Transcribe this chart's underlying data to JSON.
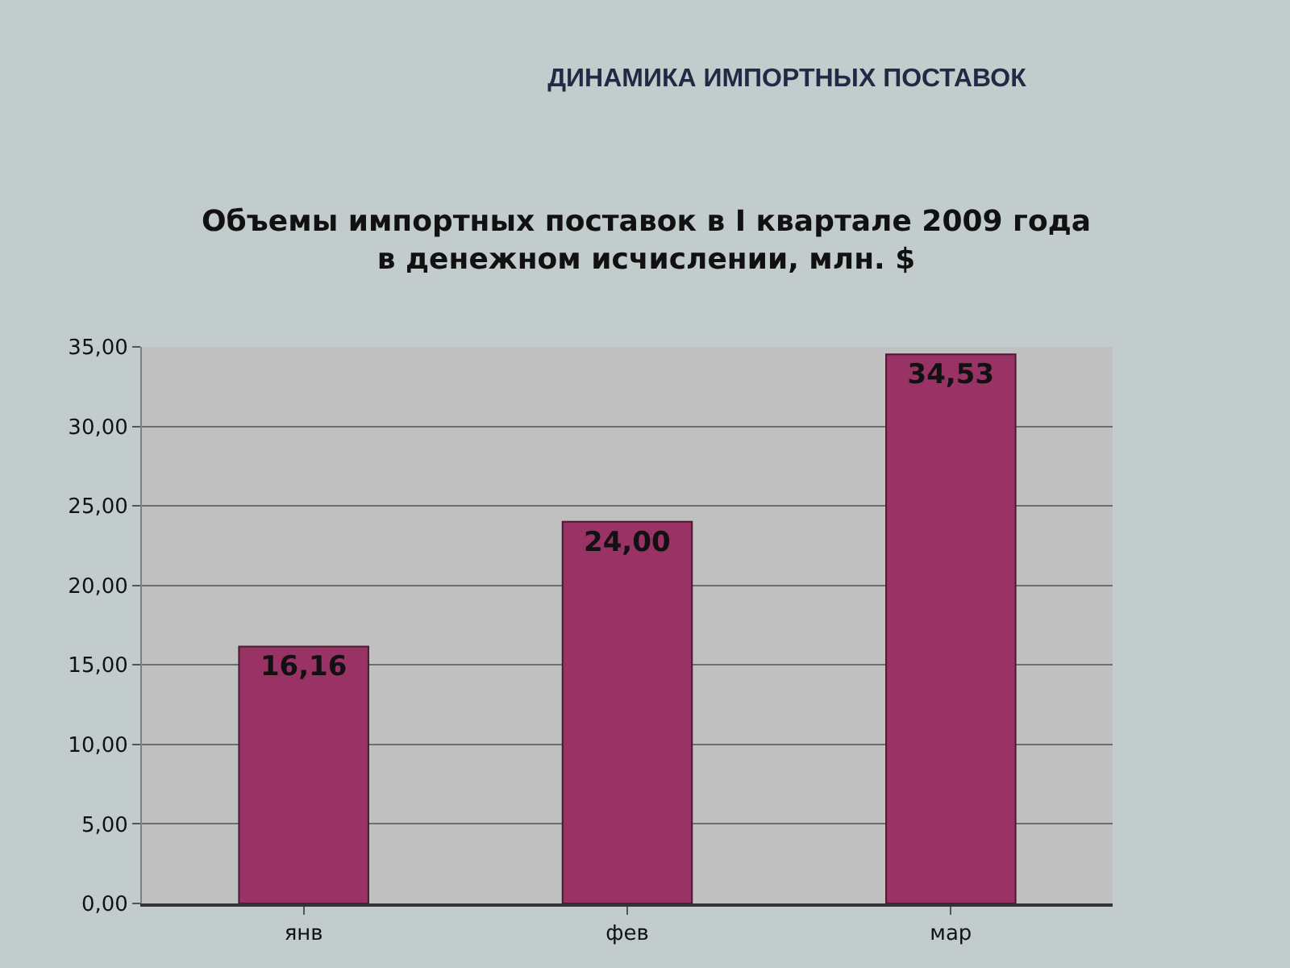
{
  "chart_data": {
    "type": "bar",
    "title": "ДИНАМИКА ИМПОРТНЫХ ПОСТАВОК",
    "subtitle": "Объемы импортных поставок в I квартале 2009 года\nв денежном исчислении, млн. $",
    "categories": [
      "янв",
      "фев",
      "мар"
    ],
    "values": [
      16.16,
      24.0,
      34.53
    ],
    "color": "#993366",
    "value_labels": [
      "16,16",
      "24,00",
      "34,53"
    ],
    "ylim": [
      0,
      35
    ],
    "yticks": [
      {
        "value": 0,
        "label": "0,00"
      },
      {
        "value": 5,
        "label": "5,00"
      },
      {
        "value": 10,
        "label": "10,00"
      },
      {
        "value": 15,
        "label": "15,00"
      },
      {
        "value": 20,
        "label": "20,00"
      },
      {
        "value": 25,
        "label": "25,00"
      },
      {
        "value": 30,
        "label": "30,00"
      },
      {
        "value": 35,
        "label": "35,00"
      }
    ],
    "grid": "y"
  }
}
